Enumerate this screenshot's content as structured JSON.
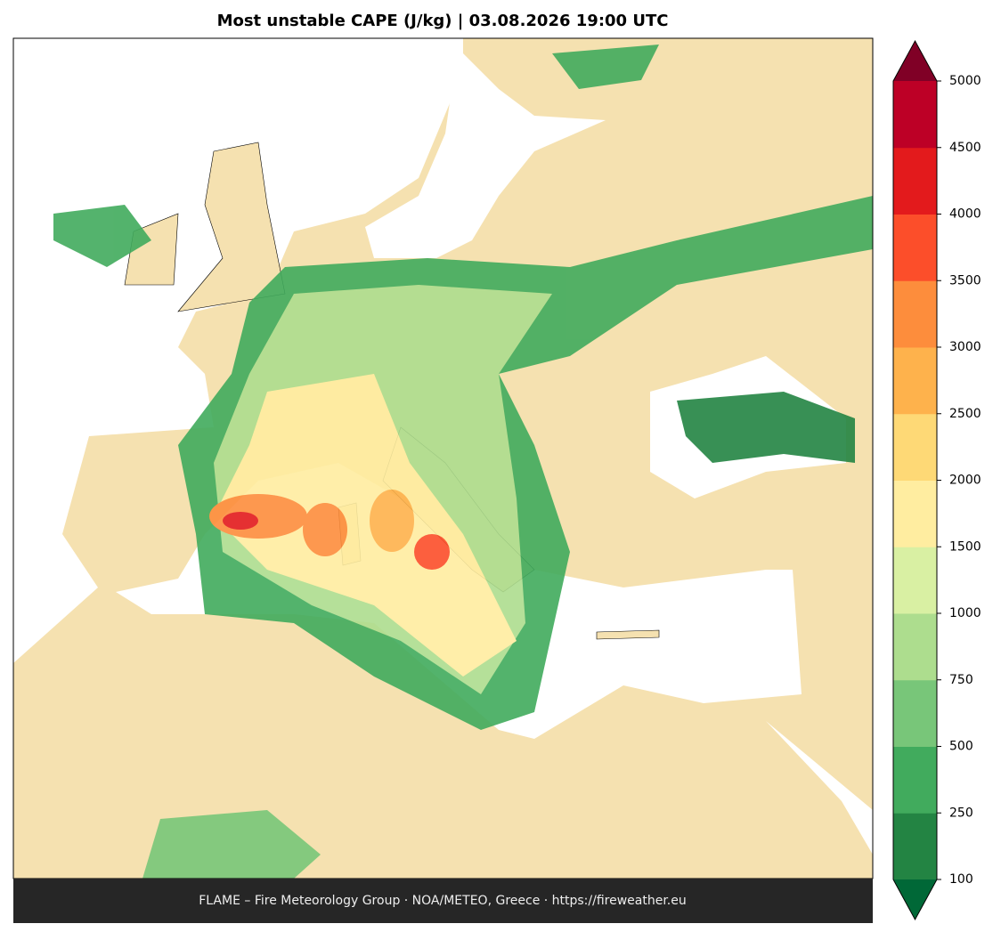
{
  "title": "Most unstable CAPE (J/kg)  |  03.08.2026 19:00 UTC",
  "footer": "FLAME – Fire Meteorology Group · NOA/METEO, Greece · https://fireweather.eu",
  "colorbar": {
    "ticks": [
      100,
      250,
      500,
      750,
      1000,
      1500,
      2000,
      2500,
      3000,
      3500,
      4000,
      4500,
      5000
    ],
    "colors": [
      "#238443",
      "#41ab5d",
      "#78c679",
      "#addd8e",
      "#d9f0a3",
      "#ffeda0",
      "#fed976",
      "#feb24c",
      "#fd8d3c",
      "#fc4e2a",
      "#e31a1c",
      "#bd0026"
    ],
    "under_color": "#006837",
    "over_color": "#800026"
  }
}
